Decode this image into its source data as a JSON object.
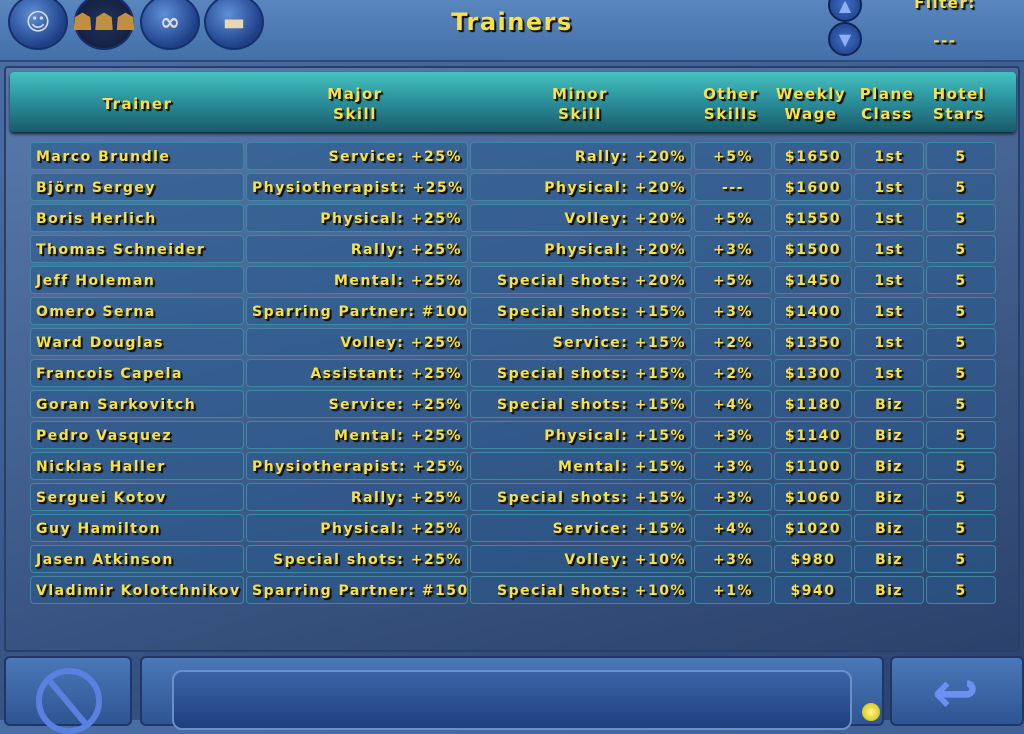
{
  "header": {
    "title": "Trainers",
    "filter_label": "Filter:",
    "filter_value": "---",
    "icons": [
      "brain-head-icon",
      "people-icon",
      "binoculars-icon",
      "building-icon"
    ]
  },
  "table": {
    "columns": [
      [
        "Trainer",
        ""
      ],
      [
        "Major",
        "Skill"
      ],
      [
        "Minor",
        "Skill"
      ],
      [
        "Other",
        "Skills"
      ],
      [
        "Weekly",
        "Wage"
      ],
      [
        "Plane",
        "Class"
      ],
      [
        "Hotel",
        "Stars"
      ]
    ],
    "rows": [
      [
        "Marco Brundle",
        "Service: +25%",
        "Rally: +20%",
        "+5%",
        "$1650",
        "1st",
        "5"
      ],
      [
        "Björn Sergey",
        "Physiotherapist: +25%",
        "Physical: +20%",
        "---",
        "$1600",
        "1st",
        "5"
      ],
      [
        "Boris Herlich",
        "Physical: +25%",
        "Volley: +20%",
        "+5%",
        "$1550",
        "1st",
        "5"
      ],
      [
        "Thomas Schneider",
        "Rally: +25%",
        "Physical: +20%",
        "+3%",
        "$1500",
        "1st",
        "5"
      ],
      [
        "Jeff Holeman",
        "Mental: +25%",
        "Special shots: +20%",
        "+5%",
        "$1450",
        "1st",
        "5"
      ],
      [
        "Omero Serna",
        "Sparring Partner: #100",
        "Special shots: +15%",
        "+3%",
        "$1400",
        "1st",
        "5"
      ],
      [
        "Ward Douglas",
        "Volley: +25%",
        "Service: +15%",
        "+2%",
        "$1350",
        "1st",
        "5"
      ],
      [
        "Francois Capela",
        "Assistant: +25%",
        "Special shots: +15%",
        "+2%",
        "$1300",
        "1st",
        "5"
      ],
      [
        "Goran Sarkovitch",
        "Service: +25%",
        "Special shots: +15%",
        "+4%",
        "$1180",
        "Biz",
        "5"
      ],
      [
        "Pedro Vasquez",
        "Mental: +25%",
        "Physical: +15%",
        "+3%",
        "$1140",
        "Biz",
        "5"
      ],
      [
        "Nicklas Haller",
        "Physiotherapist: +25%",
        "Mental: +15%",
        "+3%",
        "$1100",
        "Biz",
        "5"
      ],
      [
        "Serguei Kotov",
        "Rally: +25%",
        "Special shots: +15%",
        "+3%",
        "$1060",
        "Biz",
        "5"
      ],
      [
        "Guy Hamilton",
        "Physical: +25%",
        "Service: +15%",
        "+4%",
        "$1020",
        "Biz",
        "5"
      ],
      [
        "Jasen Atkinson",
        "Special shots: +25%",
        "Volley: +10%",
        "+3%",
        "$980",
        "Biz",
        "5"
      ],
      [
        "Vladimir Kolotchnikov",
        "Sparring Partner: #150",
        "Special shots: +10%",
        "+1%",
        "$940",
        "Biz",
        "5"
      ]
    ]
  },
  "footer": {
    "icons": [
      "cancel-icon",
      "return-arrow-icon"
    ]
  }
}
